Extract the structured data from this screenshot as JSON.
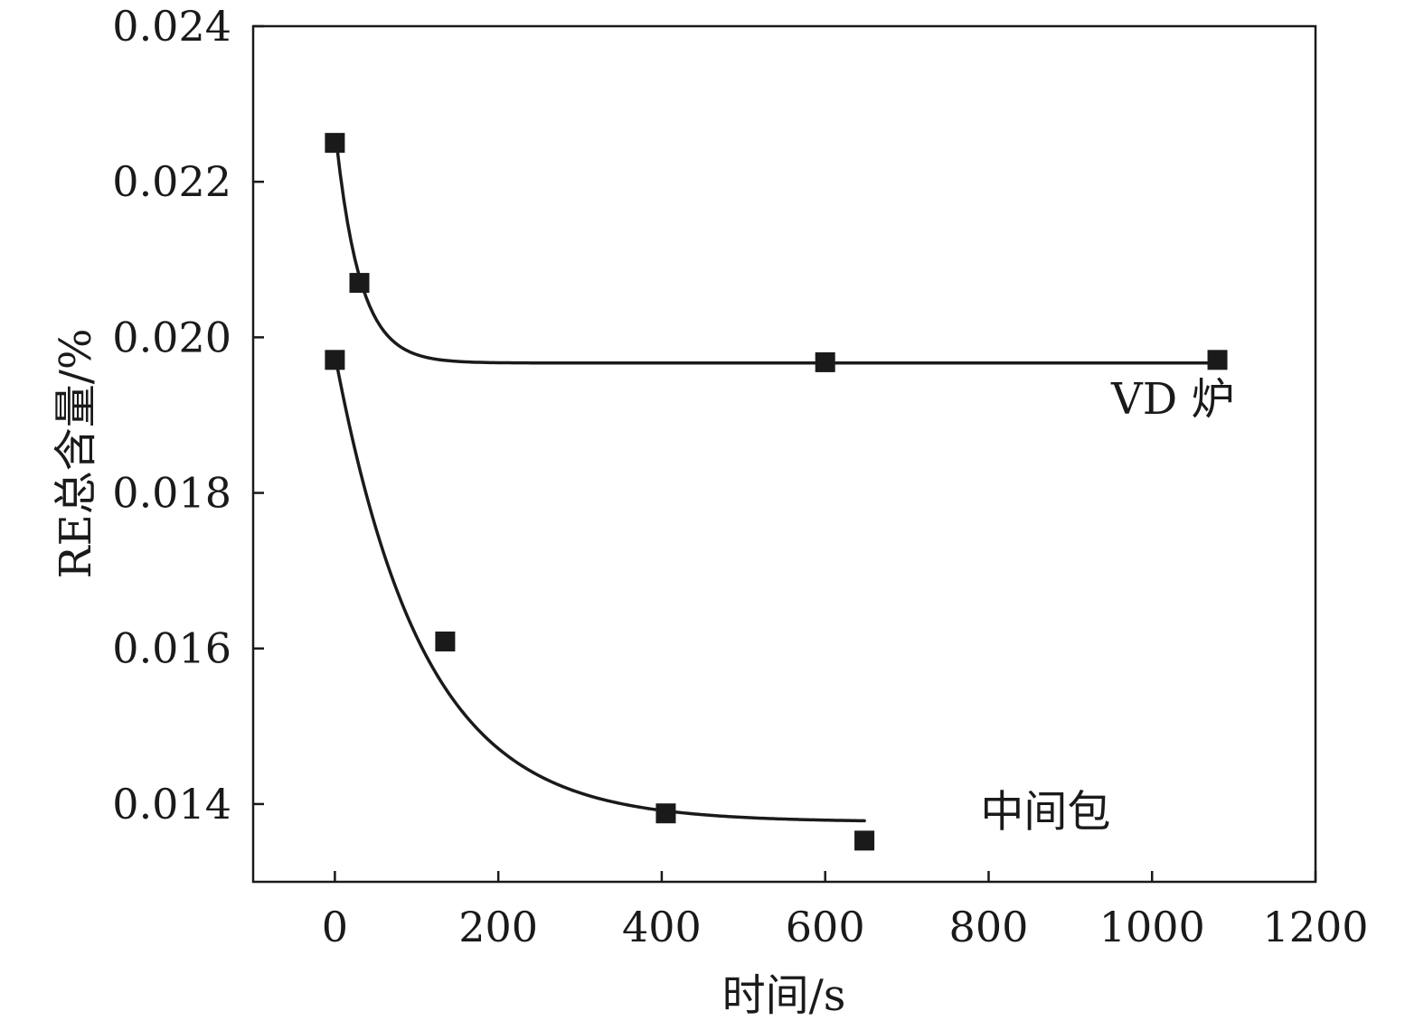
{
  "chart_data": {
    "type": "scatter",
    "xlabel": "时间/s",
    "ylabel": "RE总含量/%",
    "xlim": [
      -100,
      1200
    ],
    "ylim": [
      0.013,
      0.024
    ],
    "x_ticks": [
      0,
      200,
      400,
      600,
      800,
      1000,
      1200
    ],
    "y_ticks": [
      0.014,
      0.016,
      0.018,
      0.02,
      0.022,
      0.024
    ],
    "y_tick_labels": [
      "0.014",
      "0.016",
      "0.018",
      "0.020",
      "0.022",
      "0.024"
    ],
    "grid": false,
    "legend": "none",
    "series": [
      {
        "name": "VD 炉",
        "label_at": [
          950,
          0.0192
        ],
        "points": [
          [
            0,
            0.0225
          ],
          [
            30,
            0.0207
          ],
          [
            600,
            0.01968
          ],
          [
            1080,
            0.01971
          ]
        ],
        "fit": {
          "kind": "exp_decay",
          "x_start": 2,
          "x_end": 1080,
          "y_inf": 0.01967,
          "amplitude": 0.00283,
          "tau": 30
        }
      },
      {
        "name": "中间包",
        "label_at": [
          790,
          0.0139
        ],
        "points": [
          [
            0,
            0.01971
          ],
          [
            135,
            0.01609
          ],
          [
            405,
            0.01388
          ],
          [
            648,
            0.01353
          ]
        ],
        "fit": {
          "kind": "exp_decay",
          "x_start": 2,
          "x_end": 648,
          "y_inf": 0.01377,
          "amplitude": 0.0059,
          "tau": 108
        }
      }
    ]
  }
}
